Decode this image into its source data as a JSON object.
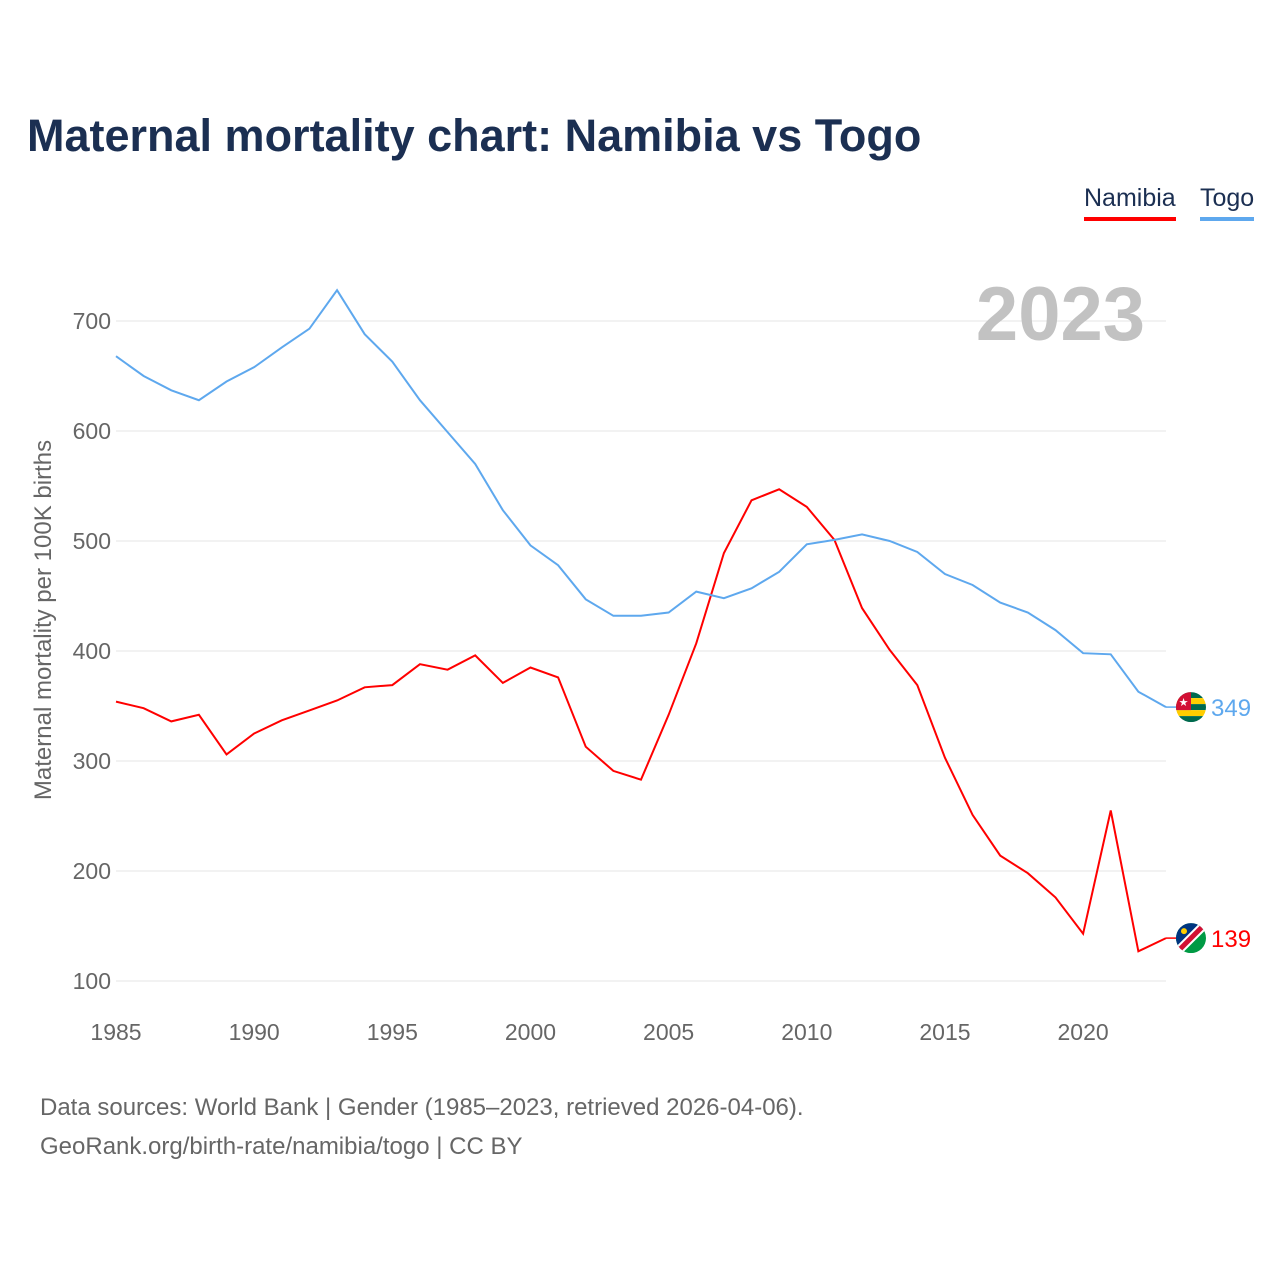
{
  "title": "Maternal mortality chart: Namibia vs Togo",
  "legend": [
    "Namibia",
    "Togo"
  ],
  "colors": {
    "Namibia": "#ff0000",
    "Togo": "#5ea8ee"
  },
  "year_label": "2023",
  "footer": {
    "line1": "Data sources: World Bank | Gender (1985–2023, retrieved 2026-04-06).",
    "line2": "GeoRank.org/birth-rate/namibia/togo | CC BY"
  },
  "end_labels": {
    "Namibia": "139",
    "Togo": "349"
  },
  "flag_icons": {
    "Namibia": "namibia-flag-icon",
    "Togo": "togo-flag-icon"
  },
  "chart_data": {
    "type": "line",
    "title": "Maternal mortality chart: Namibia vs Togo",
    "xlabel": "",
    "ylabel": "Maternal mortality per 100K births",
    "xlim": [
      1985,
      2023
    ],
    "ylim": [
      100,
      700
    ],
    "xticks": [
      1985,
      1990,
      1995,
      2000,
      2005,
      2010,
      2015,
      2020
    ],
    "yticks": [
      100,
      200,
      300,
      400,
      500,
      600,
      700
    ],
    "grid": true,
    "legend_position": "top-right",
    "x": [
      1985,
      1986,
      1987,
      1988,
      1989,
      1990,
      1991,
      1992,
      1993,
      1994,
      1995,
      1996,
      1997,
      1998,
      1999,
      2000,
      2001,
      2002,
      2003,
      2004,
      2005,
      2006,
      2007,
      2008,
      2009,
      2010,
      2011,
      2012,
      2013,
      2014,
      2015,
      2016,
      2017,
      2018,
      2019,
      2020,
      2021,
      2022,
      2023
    ],
    "series": [
      {
        "name": "Namibia",
        "values": [
          354,
          348,
          336,
          342,
          306,
          325,
          337,
          346,
          355,
          367,
          369,
          388,
          383,
          396,
          371,
          385,
          376,
          313,
          291,
          283,
          342,
          407,
          489,
          537,
          547,
          531,
          501,
          439,
          401,
          369,
          303,
          251,
          214,
          198,
          176,
          143,
          255,
          127,
          139
        ]
      },
      {
        "name": "Togo",
        "values": [
          668,
          650,
          637,
          628,
          645,
          658,
          676,
          693,
          728,
          688,
          663,
          628,
          599,
          570,
          528,
          496,
          478,
          447,
          432,
          432,
          435,
          454,
          448,
          457,
          472,
          497,
          501,
          506,
          500,
          490,
          470,
          460,
          444,
          435,
          419,
          398,
          397,
          363,
          349
        ]
      }
    ]
  }
}
